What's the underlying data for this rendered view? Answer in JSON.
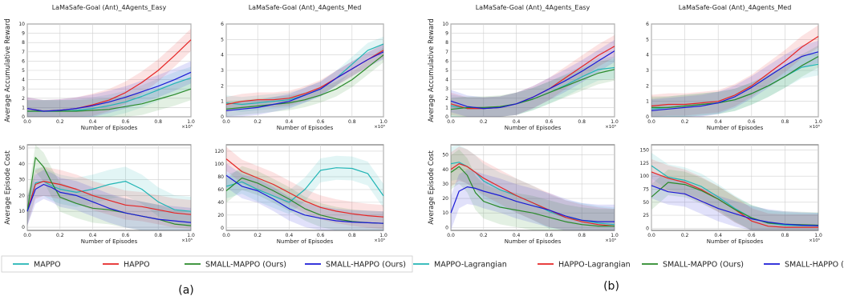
{
  "panels": [
    {
      "label": "(a)",
      "legend": [
        {
          "name": "MAPPO",
          "color": "#22b5b5"
        },
        {
          "name": "HAPPO",
          "color": "#e62525"
        },
        {
          "name": "SMALL-MAPPO (Ours)",
          "color": "#2a8a2a"
        },
        {
          "name": "SMALL-HAPPO (Ours)",
          "color": "#1a1ad6"
        }
      ]
    },
    {
      "label": "(b)",
      "legend": [
        {
          "name": "MAPPO-Lagrangian",
          "color": "#22b5b5"
        },
        {
          "name": "HAPPO-Lagrangian",
          "color": "#e62525"
        },
        {
          "name": "SMALL-MAPPO (Ours)",
          "color": "#2a8a2a"
        },
        {
          "name": "SMALL-HAPPO (Ours)",
          "color": "#1a1ad6"
        }
      ]
    }
  ],
  "chart_data": [
    {
      "type": "line",
      "panel": "a",
      "title": "LaMaSafe-Goal (Ant)_4Agents_Easy",
      "xlabel": "Number of Episodes",
      "ylabel": "Average Accumulative Reward",
      "x_multiplier": "×10⁵",
      "xlim": [
        0,
        1
      ],
      "ylim": [
        0,
        10
      ],
      "xticks": [
        0,
        0.2,
        0.4,
        0.6,
        0.8,
        1.0
      ],
      "yticks": [
        0,
        1,
        2,
        3,
        4,
        5,
        6,
        7,
        8,
        9,
        10
      ],
      "x": [
        0,
        0.1,
        0.2,
        0.3,
        0.4,
        0.5,
        0.6,
        0.7,
        0.8,
        0.9,
        1.0
      ],
      "series": [
        {
          "name": "MAPPO",
          "color": "#22b5b5",
          "values": [
            0.6,
            0.6,
            0.6,
            0.7,
            0.9,
            1.2,
            1.6,
            2.2,
            2.9,
            3.6,
            4.2
          ]
        },
        {
          "name": "HAPPO",
          "color": "#e62525",
          "values": [
            0.9,
            0.6,
            0.7,
            0.9,
            1.3,
            1.8,
            2.6,
            3.7,
            5.0,
            6.6,
            8.3
          ]
        },
        {
          "name": "SMALL-MAPPO (Ours)",
          "color": "#2a8a2a",
          "values": [
            0.6,
            0.6,
            0.6,
            0.6,
            0.7,
            0.8,
            1.1,
            1.4,
            1.9,
            2.4,
            3.0
          ]
        },
        {
          "name": "SMALL-HAPPO (Ours)",
          "color": "#1a1ad6",
          "values": [
            0.9,
            0.6,
            0.7,
            0.9,
            1.2,
            1.6,
            2.1,
            2.7,
            3.3,
            4.0,
            4.8
          ]
        }
      ]
    },
    {
      "type": "line",
      "panel": "a",
      "title": "LaMaSafe-Goal (Ant)_4Agents_Med",
      "xlabel": "Number of Episodes",
      "ylabel": "",
      "x_multiplier": "×10⁵",
      "xlim": [
        0,
        1
      ],
      "ylim": [
        0,
        6
      ],
      "xticks": [
        0,
        0.2,
        0.4,
        0.6,
        0.8,
        1.0
      ],
      "yticks": [
        0,
        1,
        2,
        3,
        4,
        5,
        6
      ],
      "x": [
        0,
        0.1,
        0.2,
        0.3,
        0.4,
        0.5,
        0.6,
        0.7,
        0.8,
        0.9,
        1.0
      ],
      "series": [
        {
          "name": "MAPPO",
          "color": "#22b5b5",
          "values": [
            0.9,
            0.8,
            0.9,
            1.0,
            1.1,
            1.4,
            1.8,
            2.5,
            3.4,
            4.3,
            4.7
          ]
        },
        {
          "name": "HAPPO",
          "color": "#e62525",
          "values": [
            0.8,
            1.0,
            1.1,
            1.1,
            1.2,
            1.5,
            1.9,
            2.5,
            3.1,
            3.7,
            4.3
          ]
        },
        {
          "name": "SMALL-MAPPO (Ours)",
          "color": "#2a8a2a",
          "values": [
            0.5,
            0.6,
            0.7,
            0.8,
            0.9,
            1.1,
            1.4,
            1.8,
            2.4,
            3.2,
            4.0
          ]
        },
        {
          "name": "SMALL-HAPPO (Ours)",
          "color": "#1a1ad6",
          "values": [
            0.4,
            0.5,
            0.6,
            0.8,
            1.0,
            1.4,
            1.8,
            2.5,
            3.1,
            3.7,
            4.2
          ]
        }
      ]
    },
    {
      "type": "line",
      "panel": "a",
      "title": "",
      "xlabel": "Number of Episodes",
      "ylabel": "Average Episode Cost",
      "x_multiplier": "×10⁵",
      "xlim": [
        0,
        1
      ],
      "ylim": [
        -2,
        52
      ],
      "xticks": [
        0,
        0.2,
        0.4,
        0.6,
        0.8,
        1.0
      ],
      "yticks": [
        0,
        10,
        20,
        30,
        40,
        50
      ],
      "x": [
        0,
        0.05,
        0.1,
        0.15,
        0.2,
        0.3,
        0.4,
        0.5,
        0.6,
        0.7,
        0.8,
        0.9,
        1.0
      ],
      "series": [
        {
          "name": "MAPPO",
          "color": "#22b5b5",
          "values": [
            10,
            28,
            29,
            26,
            24,
            22,
            24,
            27,
            29,
            24,
            16,
            11,
            10
          ]
        },
        {
          "name": "HAPPO",
          "color": "#e62525",
          "values": [
            10,
            27,
            29,
            28,
            27,
            24,
            20,
            17,
            14,
            13,
            11,
            9,
            8
          ]
        },
        {
          "name": "SMALL-MAPPO (Ours)",
          "color": "#2a8a2a",
          "values": [
            10,
            44,
            38,
            28,
            19,
            15,
            12,
            11,
            9,
            7,
            5,
            2,
            1
          ]
        },
        {
          "name": "SMALL-HAPPO (Ours)",
          "color": "#1a1ad6",
          "values": [
            10,
            24,
            27,
            25,
            22,
            20,
            16,
            12,
            9,
            7,
            5,
            4,
            3
          ]
        }
      ]
    },
    {
      "type": "line",
      "panel": "a",
      "title": "",
      "xlabel": "Number of Episodes",
      "ylabel": "",
      "x_multiplier": "×10⁵",
      "xlim": [
        0,
        1
      ],
      "ylim": [
        -4,
        130
      ],
      "xticks": [
        0,
        0.2,
        0.4,
        0.6,
        0.8,
        1.0
      ],
      "yticks": [
        0,
        20,
        40,
        60,
        80,
        100,
        120
      ],
      "x": [
        0,
        0.1,
        0.2,
        0.3,
        0.4,
        0.5,
        0.6,
        0.7,
        0.8,
        0.9,
        1.0
      ],
      "series": [
        {
          "name": "MAPPO",
          "color": "#22b5b5",
          "values": [
            65,
            72,
            60,
            50,
            40,
            60,
            90,
            94,
            93,
            85,
            50
          ]
        },
        {
          "name": "HAPPO",
          "color": "#e62525",
          "values": [
            108,
            88,
            78,
            68,
            55,
            42,
            32,
            26,
            22,
            19,
            17
          ]
        },
        {
          "name": "SMALL-MAPPO (Ours)",
          "color": "#2a8a2a",
          "values": [
            58,
            78,
            70,
            58,
            45,
            30,
            20,
            14,
            10,
            8,
            7
          ]
        },
        {
          "name": "SMALL-HAPPO (Ours)",
          "color": "#1a1ad6",
          "values": [
            82,
            65,
            58,
            45,
            30,
            20,
            15,
            11,
            9,
            8,
            7
          ]
        }
      ]
    },
    {
      "type": "line",
      "panel": "b",
      "title": "LaMaSafe-Goal (Ant)_4Agents_Easy",
      "xlabel": "Number of Episodes",
      "ylabel": "Average Accumulative Reward",
      "x_multiplier": "×10⁵",
      "xlim": [
        0,
        1
      ],
      "ylim": [
        0,
        10
      ],
      "xticks": [
        0,
        0.2,
        0.4,
        0.6,
        0.8,
        1.0
      ],
      "yticks": [
        0,
        1,
        2,
        3,
        4,
        5,
        6,
        7,
        8,
        9,
        10
      ],
      "x": [
        0,
        0.1,
        0.2,
        0.3,
        0.4,
        0.5,
        0.6,
        0.7,
        0.8,
        0.9,
        1.0
      ],
      "series": [
        {
          "name": "MAPPO-Lagrangian",
          "color": "#22b5b5",
          "values": [
            1.2,
            0.9,
            0.9,
            1.0,
            1.4,
            1.9,
            2.6,
            3.4,
            4.3,
            5.1,
            5.3
          ]
        },
        {
          "name": "HAPPO-Lagrangian",
          "color": "#e62525",
          "values": [
            1.4,
            0.9,
            0.9,
            1.0,
            1.4,
            2.1,
            3.0,
            4.2,
            5.4,
            6.6,
            7.6
          ]
        },
        {
          "name": "SMALL-MAPPO (Ours)",
          "color": "#2a8a2a",
          "values": [
            0.8,
            1.0,
            1.0,
            1.1,
            1.4,
            1.9,
            2.6,
            3.3,
            4.0,
            4.7,
            5.1
          ]
        },
        {
          "name": "SMALL-HAPPO (Ours)",
          "color": "#1a1ad6",
          "values": [
            1.7,
            1.1,
            0.9,
            1.0,
            1.4,
            2.1,
            3.0,
            3.9,
            4.9,
            6.0,
            7.1
          ]
        }
      ]
    },
    {
      "type": "line",
      "panel": "b",
      "title": "LaMaSafe-Goal (Ant)_4Agents_Med",
      "xlabel": "Number of Episodes",
      "ylabel": "",
      "x_multiplier": "×10⁵",
      "xlim": [
        0,
        1
      ],
      "ylim": [
        0,
        6
      ],
      "xticks": [
        0,
        0.2,
        0.4,
        0.6,
        0.8,
        1.0
      ],
      "yticks": [
        0,
        1,
        2,
        3,
        4,
        5,
        6
      ],
      "x": [
        0,
        0.1,
        0.2,
        0.3,
        0.4,
        0.5,
        0.6,
        0.7,
        0.8,
        0.9,
        1.0
      ],
      "series": [
        {
          "name": "MAPPO-Lagrangian",
          "color": "#22b5b5",
          "values": [
            0.5,
            0.6,
            0.7,
            0.8,
            0.9,
            1.1,
            1.5,
            2.0,
            2.6,
            3.2,
            3.4
          ]
        },
        {
          "name": "HAPPO-Lagrangian",
          "color": "#e62525",
          "values": [
            0.7,
            0.8,
            0.8,
            0.9,
            1.0,
            1.4,
            2.0,
            2.8,
            3.6,
            4.5,
            5.2
          ]
        },
        {
          "name": "SMALL-MAPPO (Ours)",
          "color": "#2a8a2a",
          "values": [
            0.6,
            0.6,
            0.7,
            0.8,
            0.9,
            1.1,
            1.5,
            2.0,
            2.6,
            3.3,
            3.9
          ]
        },
        {
          "name": "SMALL-HAPPO (Ours)",
          "color": "#1a1ad6",
          "values": [
            0.4,
            0.5,
            0.6,
            0.7,
            0.9,
            1.3,
            1.9,
            2.6,
            3.3,
            3.9,
            4.2
          ]
        }
      ]
    },
    {
      "type": "line",
      "panel": "b",
      "title": "",
      "xlabel": "Number of Episodes",
      "ylabel": "Average Episode Cost",
      "x_multiplier": "×10⁵",
      "xlim": [
        0,
        1
      ],
      "ylim": [
        -2,
        57
      ],
      "xticks": [
        0,
        0.2,
        0.4,
        0.6,
        0.8,
        1.0
      ],
      "yticks": [
        0,
        10,
        20,
        30,
        40,
        50
      ],
      "x": [
        0,
        0.05,
        0.1,
        0.15,
        0.2,
        0.3,
        0.4,
        0.5,
        0.6,
        0.7,
        0.8,
        0.9,
        1.0
      ],
      "series": [
        {
          "name": "MAPPO-Lagrangian",
          "color": "#22b5b5",
          "values": [
            44,
            45,
            42,
            38,
            32,
            26,
            22,
            17,
            11,
            7,
            5,
            3,
            2
          ]
        },
        {
          "name": "HAPPO-Lagrangian",
          "color": "#e62525",
          "values": [
            40,
            44,
            42,
            38,
            34,
            28,
            22,
            17,
            12,
            7,
            4,
            2,
            1
          ]
        },
        {
          "name": "SMALL-MAPPO (Ours)",
          "color": "#2a8a2a",
          "values": [
            38,
            42,
            36,
            24,
            18,
            14,
            12,
            10,
            7,
            4,
            2,
            1,
            1
          ]
        },
        {
          "name": "SMALL-HAPPO (Ours)",
          "color": "#1a1ad6",
          "values": [
            10,
            25,
            28,
            27,
            25,
            22,
            18,
            15,
            12,
            8,
            5,
            4,
            4
          ]
        }
      ]
    },
    {
      "type": "line",
      "panel": "b",
      "title": "",
      "xlabel": "Number of Episodes",
      "ylabel": "",
      "x_multiplier": "×10⁵",
      "xlim": [
        0,
        1
      ],
      "ylim": [
        -4,
        160
      ],
      "xticks": [
        0,
        0.2,
        0.4,
        0.6,
        0.8,
        1.0
      ],
      "yticks": [
        0,
        25,
        50,
        75,
        100,
        125,
        150
      ],
      "x": [
        0,
        0.1,
        0.2,
        0.3,
        0.4,
        0.5,
        0.6,
        0.7,
        0.8,
        0.9,
        1.0
      ],
      "series": [
        {
          "name": "MAPPO-Lagrangian",
          "color": "#22b5b5",
          "values": [
            120,
            98,
            92,
            80,
            60,
            38,
            20,
            10,
            6,
            5,
            5
          ]
        },
        {
          "name": "HAPPO-Lagrangian",
          "color": "#e62525",
          "values": [
            108,
            96,
            88,
            74,
            56,
            36,
            14,
            4,
            2,
            2,
            2
          ]
        },
        {
          "name": "SMALL-MAPPO (Ours)",
          "color": "#2a8a2a",
          "values": [
            60,
            88,
            84,
            72,
            56,
            36,
            20,
            10,
            8,
            7,
            6
          ]
        },
        {
          "name": "SMALL-HAPPO (Ours)",
          "color": "#1a1ad6",
          "values": [
            82,
            70,
            66,
            52,
            38,
            28,
            18,
            12,
            8,
            6,
            5
          ]
        }
      ]
    }
  ]
}
